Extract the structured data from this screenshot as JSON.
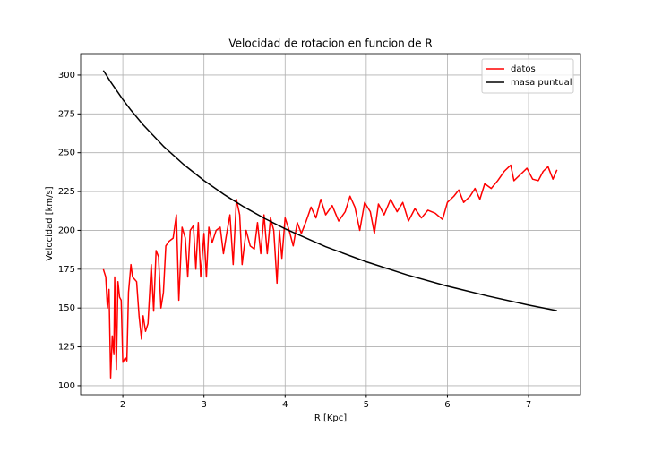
{
  "chart_data": {
    "type": "line",
    "title": "Velocidad de rotacion en funcion de R",
    "x_label": "R [Kpc]",
    "y_label": "Velocidad [km/s]",
    "xlim": [
      1.48,
      7.64
    ],
    "ylim": [
      94.2,
      313.8
    ],
    "xticks": [
      2,
      3,
      4,
      5,
      6,
      7
    ],
    "yticks": [
      100,
      125,
      150,
      175,
      200,
      225,
      250,
      275,
      300
    ],
    "grid": true,
    "legend_position": "upper-right",
    "series": [
      {
        "name": "datos",
        "color": "#ff0000",
        "x": [
          1.76,
          1.79,
          1.81,
          1.83,
          1.85,
          1.87,
          1.89,
          1.9,
          1.92,
          1.94,
          1.96,
          1.98,
          2.0,
          2.03,
          2.05,
          2.07,
          2.1,
          2.12,
          2.17,
          2.2,
          2.23,
          2.25,
          2.28,
          2.31,
          2.35,
          2.38,
          2.41,
          2.44,
          2.47,
          2.5,
          2.53,
          2.57,
          2.62,
          2.66,
          2.69,
          2.73,
          2.77,
          2.8,
          2.83,
          2.87,
          2.9,
          2.93,
          2.96,
          3.0,
          3.03,
          3.06,
          3.1,
          3.15,
          3.2,
          3.24,
          3.28,
          3.32,
          3.36,
          3.4,
          3.44,
          3.47,
          3.52,
          3.57,
          3.62,
          3.66,
          3.7,
          3.74,
          3.78,
          3.82,
          3.86,
          3.9,
          3.93,
          3.96,
          4.0,
          4.05,
          4.1,
          4.15,
          4.2,
          4.26,
          4.32,
          4.38,
          4.44,
          4.5,
          4.58,
          4.66,
          4.74,
          4.8,
          4.86,
          4.92,
          4.98,
          5.05,
          5.1,
          5.15,
          5.22,
          5.3,
          5.38,
          5.45,
          5.52,
          5.6,
          5.68,
          5.76,
          5.85,
          5.94,
          6.0,
          6.08,
          6.14,
          6.2,
          6.28,
          6.34,
          6.4,
          6.46,
          6.54,
          6.62,
          6.7,
          6.78,
          6.82,
          6.9,
          6.98,
          7.05,
          7.12,
          7.18,
          7.24,
          7.3,
          7.35
        ],
        "values": [
          175,
          170,
          150,
          162,
          105,
          132,
          120,
          170,
          110,
          167,
          157,
          155,
          115,
          118,
          116,
          160,
          178,
          170,
          167,
          145,
          130,
          145,
          135,
          140,
          178,
          148,
          187,
          183,
          150,
          160,
          190,
          193,
          195,
          210,
          155,
          202,
          195,
          170,
          200,
          203,
          175,
          205,
          170,
          198,
          170,
          202,
          192,
          200,
          202,
          185,
          198,
          210,
          178,
          220,
          210,
          178,
          200,
          190,
          188,
          205,
          185,
          210,
          185,
          208,
          200,
          166,
          200,
          182,
          208,
          200,
          190,
          205,
          198,
          206,
          215,
          208,
          220,
          210,
          216,
          206,
          212,
          222,
          215,
          200,
          218,
          212,
          198,
          217,
          210,
          220,
          212,
          218,
          206,
          214,
          208,
          213,
          211,
          207,
          218,
          222,
          226,
          218,
          222,
          227,
          220,
          230,
          227,
          232,
          238,
          242,
          232,
          236,
          240,
          233,
          232,
          238,
          241,
          233,
          239
        ]
      },
      {
        "name": "masa puntual",
        "color": "#000000",
        "x": [
          1.76,
          1.85,
          2.0,
          2.1,
          2.25,
          2.5,
          2.75,
          3.0,
          3.25,
          3.5,
          3.75,
          4.0,
          4.5,
          5.0,
          5.5,
          6.0,
          6.5,
          7.0,
          7.35
        ],
        "values": [
          303.0,
          295.6,
          284.3,
          277.4,
          268.0,
          254.2,
          242.4,
          232.1,
          223.0,
          214.9,
          207.6,
          201.0,
          189.5,
          179.8,
          171.4,
          164.1,
          157.7,
          151.9,
          148.3
        ]
      }
    ]
  }
}
